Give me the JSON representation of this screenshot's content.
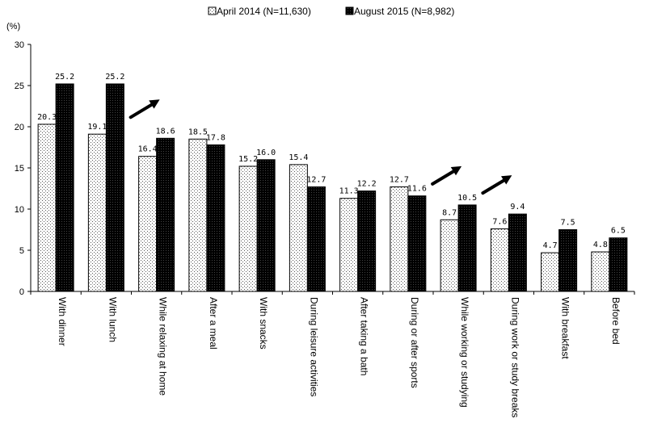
{
  "chart_data": {
    "type": "bar",
    "ylabel": "(%)",
    "ylim": [
      0,
      30
    ],
    "yticks": [
      0,
      5,
      10,
      15,
      20,
      25,
      30
    ],
    "grid": false,
    "legend_position": "top-center",
    "categories": [
      "With dinner",
      "With lunch",
      "While relaxing at home",
      "After a meal",
      "With snacks",
      "During leisure activities",
      "After taking a bath",
      "During or after sports",
      "While working or studying",
      "During work or study breaks",
      "With breakfast",
      "Before bed"
    ],
    "series": [
      {
        "name": "April 2014 (N=11,630)",
        "pattern": "dotted-white",
        "values": [
          20.3,
          19.1,
          16.4,
          18.5,
          15.2,
          15.4,
          11.3,
          12.7,
          8.7,
          7.6,
          4.7,
          4.8
        ]
      },
      {
        "name": "August 2015 (N=8,982)",
        "pattern": "solid-black",
        "values": [
          25.2,
          25.2,
          18.6,
          17.8,
          16.0,
          12.7,
          12.2,
          11.6,
          10.5,
          9.4,
          7.5,
          6.5
        ]
      }
    ],
    "data_labels": {
      "April 2014 (N=11,630)": [
        "20.3",
        "19.1",
        "16.4",
        "18.5",
        "15.2",
        "15.4",
        "11.3",
        "12.7",
        "8.7",
        "7.6",
        "4.7",
        "4.8"
      ],
      "August 2015 (N=8,982)": [
        "25.2",
        "25.2",
        "18.6",
        "17.8",
        "16.0",
        "12.7",
        "12.2",
        "11.6",
        "10.5",
        "9.4",
        "7.5",
        "6.5"
      ]
    },
    "annotations": [
      {
        "type": "arrow-up-right",
        "category": "While relaxing at home"
      },
      {
        "type": "arrow-up-right",
        "category": "While working or studying"
      },
      {
        "type": "arrow-up-right",
        "category": "During work or study breaks"
      }
    ]
  }
}
